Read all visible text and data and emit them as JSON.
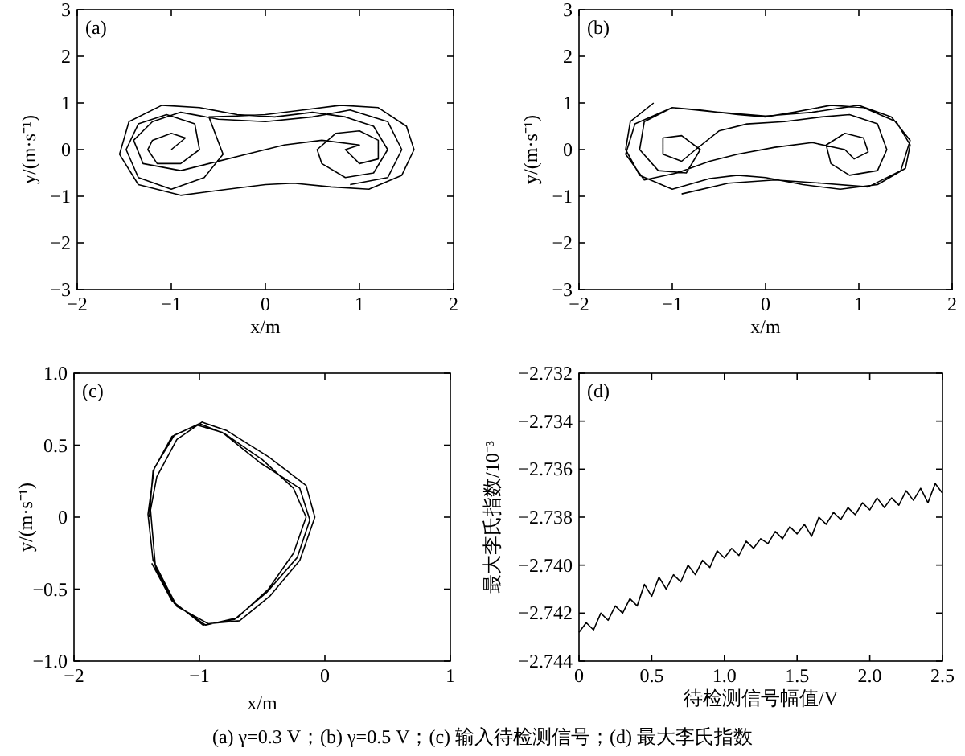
{
  "chart_data": [
    {
      "type": "line",
      "xlabel": "x/m",
      "ylabel": "y/(m·s⁻¹)",
      "annotations": [
        "(a)"
      ],
      "xlim": [
        -2,
        2
      ],
      "ylim": [
        -3,
        3
      ],
      "xticks": [
        -2,
        -1,
        0,
        1,
        2
      ],
      "yticks": [
        -3,
        -2,
        -1,
        0,
        1,
        2,
        3
      ],
      "series": [
        {
          "color": "#000000",
          "x": [
            -1,
            -0.85,
            -1,
            -1.2,
            -1.25,
            -1.15,
            -0.9,
            -0.7,
            -0.75,
            -1.05,
            -1.35,
            -1.48,
            -1.35,
            -1,
            -0.65,
            -0.45,
            -0.6,
            -0.3,
            0,
            0.4,
            0.8,
            1.2,
            1.5,
            1.58,
            1.45,
            1.1,
            0.7,
            0.3,
            0,
            -0.4,
            -0.9,
            -1.35,
            -1.55,
            -1.45,
            -1.1,
            -0.7,
            -0.3,
            0.1,
            0.5,
            0.85,
            1.15,
            1.3,
            1.15,
            0.85,
            0.6,
            0.55,
            0.75,
            1,
            1.2,
            1.2,
            1,
            0.85,
            1,
            0.6,
            0.2,
            -0.2,
            -0.6,
            -0.9,
            -1.3,
            -1.4,
            -1.2,
            -0.9,
            -0.5,
            0,
            0.5,
            0.9,
            1.3,
            1.45,
            1.3,
            0.9
          ],
          "values": [
            0,
            0.25,
            0.35,
            0.2,
            0,
            -0.3,
            -0.3,
            0,
            0.55,
            0.75,
            0.55,
            0,
            -0.6,
            -0.85,
            -0.6,
            -0.1,
            0.7,
            0.72,
            0.75,
            0.85,
            0.95,
            0.9,
            0.5,
            0,
            -0.55,
            -0.85,
            -0.8,
            -0.72,
            -0.75,
            -0.85,
            -0.98,
            -0.75,
            -0.1,
            0.6,
            0.95,
            0.9,
            0.75,
            0.7,
            0.8,
            0.7,
            0.5,
            0,
            -0.5,
            -0.6,
            -0.3,
            0,
            0.35,
            0.4,
            0.2,
            -0.2,
            -0.3,
            0,
            0.1,
            0.2,
            0.1,
            -0.1,
            -0.3,
            -0.45,
            -0.3,
            0.2,
            0.6,
            0.8,
            0.65,
            0.6,
            0.7,
            0.85,
            0.6,
            0,
            -0.6,
            -0.75
          ]
        }
      ]
    },
    {
      "type": "line",
      "xlabel": "x/m",
      "ylabel": "y/(m·s⁻¹)",
      "annotations": [
        "(b)"
      ],
      "xlim": [
        -2,
        2
      ],
      "ylim": [
        -3,
        3
      ],
      "xticks": [
        -2,
        -1,
        0,
        1,
        2
      ],
      "yticks": [
        -3,
        -2,
        -1,
        0,
        1,
        2,
        3
      ],
      "series": [
        {
          "color": "#000000",
          "x": [
            -1.2,
            -1.45,
            -1.5,
            -1.35,
            -1,
            -0.6,
            -0.3,
            0,
            0.4,
            0.8,
            1.2,
            1.5,
            1.55,
            1.4,
            1.05,
            0.7,
            0.3,
            0,
            -0.3,
            -0.7,
            -1,
            -1.3,
            -1.35,
            -1.15,
            -0.85,
            -0.7,
            -0.9,
            -1.1,
            -1.1,
            -0.9,
            -0.75,
            -0.5,
            -0.2,
            0.2,
            0.6,
            0.9,
            1.2,
            1.3,
            1.2,
            0.9,
            0.7,
            0.65,
            0.85,
            1.05,
            1.1,
            0.95,
            0.85,
            0.5,
            0.1,
            -0.3,
            -0.6,
            -0.95,
            -1.3,
            -1.5,
            -1.4,
            -1,
            -0.5,
            0,
            0.5,
            1,
            1.35,
            1.55,
            1.45,
            1.1,
            0.6,
            0.1,
            -0.4,
            -0.9
          ],
          "values": [
            1,
            0.6,
            0,
            -0.55,
            -0.85,
            -0.62,
            -0.55,
            -0.6,
            -0.75,
            -0.85,
            -0.75,
            -0.4,
            0.1,
            0.6,
            0.9,
            0.95,
            0.8,
            0.7,
            0.75,
            0.85,
            0.9,
            0.6,
            0,
            -0.45,
            -0.5,
            0,
            0.3,
            0.25,
            -0.1,
            -0.25,
            0,
            0.4,
            0.55,
            0.6,
            0.7,
            0.75,
            0.55,
            0,
            -0.45,
            -0.55,
            -0.3,
            0.1,
            0.35,
            0.25,
            -0.05,
            -0.2,
            0,
            0.15,
            0.05,
            -0.1,
            -0.25,
            -0.5,
            -0.65,
            -0.1,
            0.55,
            0.9,
            0.8,
            0.72,
            0.8,
            0.95,
            0.7,
            0.2,
            -0.45,
            -0.8,
            -0.72,
            -0.65,
            -0.72,
            -0.95
          ]
        }
      ]
    },
    {
      "type": "line",
      "xlabel": "x/m",
      "ylabel": "y/(m·s⁻¹)",
      "annotations": [
        "(c)"
      ],
      "xlim": [
        -2,
        1
      ],
      "ylim": [
        -1,
        1
      ],
      "xticks": [
        -2,
        -1,
        0,
        1
      ],
      "yticks": [
        {
          "value": -1,
          "label": "−1.0"
        },
        {
          "value": -0.5,
          "label": "−0.5"
        },
        0,
        {
          "value": 0.5,
          "label": "0.5"
        },
        {
          "value": 1,
          "label": "1.0"
        }
      ],
      "series": [
        {
          "color": "#000000",
          "x": [
            -1.4,
            -1.37,
            -1.22,
            -1.0,
            -0.8,
            -0.5,
            -0.25,
            -0.15,
            -0.25,
            -0.45,
            -0.7,
            -0.95,
            -1.2,
            -1.35,
            -1.39,
            -1.34,
            -1.18,
            -0.98,
            -0.78,
            -0.45,
            -0.15,
            -0.08,
            -0.2,
            -0.44,
            -0.68,
            -0.93,
            -1.18,
            -1.37,
            -1.41,
            -1.36,
            -1.2,
            -1.02,
            -0.82,
            -0.52,
            -0.2,
            -0.12,
            -0.22,
            -0.46,
            -0.72,
            -0.97,
            -1.22,
            -1.38
          ],
          "values": [
            0,
            0.32,
            0.56,
            0.65,
            0.58,
            0.4,
            0.2,
            0,
            -0.25,
            -0.5,
            -0.7,
            -0.75,
            -0.6,
            -0.35,
            0.05,
            0.28,
            0.54,
            0.66,
            0.6,
            0.42,
            0.22,
            0,
            -0.3,
            -0.55,
            -0.72,
            -0.74,
            -0.62,
            -0.3,
            0.02,
            0.34,
            0.57,
            0.64,
            0.59,
            0.38,
            0.2,
            -0.02,
            -0.28,
            -0.52,
            -0.71,
            -0.75,
            -0.58,
            -0.32
          ]
        }
      ]
    },
    {
      "type": "line",
      "xlabel": "待检测信号幅值/V",
      "ylabel": "最大李氏指数/10⁻³",
      "annotations": [
        "(d)",
        "(a) γ=0.3 V；(b) γ=0.5 V；(c) 输入待检测信号；(d) 最大李氏指数"
      ],
      "xlim": [
        0,
        2.5
      ],
      "ylim": [
        -2.744,
        -2.732
      ],
      "xticks": [
        0,
        {
          "value": 0.5,
          "label": "0.5"
        },
        {
          "value": 1,
          "label": "1.0"
        },
        {
          "value": 1.5,
          "label": "1.5"
        },
        {
          "value": 2,
          "label": "2.0"
        },
        {
          "value": 2.5,
          "label": "2.5"
        }
      ],
      "yticks": [
        {
          "value": -2.744,
          "label": "−2.744"
        },
        {
          "value": -2.742,
          "label": "−2.742"
        },
        {
          "value": -2.74,
          "label": "−2.740"
        },
        {
          "value": -2.738,
          "label": "−2.738"
        },
        {
          "value": -2.736,
          "label": "−2.736"
        },
        {
          "value": -2.734,
          "label": "−2.734"
        },
        {
          "value": -2.732,
          "label": "−2.732"
        }
      ],
      "series": [
        {
          "color": "#000000",
          "x": [
            0,
            0.05,
            0.1,
            0.15,
            0.2,
            0.25,
            0.3,
            0.35,
            0.4,
            0.45,
            0.5,
            0.55,
            0.6,
            0.65,
            0.7,
            0.75,
            0.8,
            0.85,
            0.9,
            0.95,
            1,
            1.05,
            1.1,
            1.15,
            1.2,
            1.25,
            1.3,
            1.35,
            1.4,
            1.45,
            1.5,
            1.55,
            1.6,
            1.65,
            1.7,
            1.75,
            1.8,
            1.85,
            1.9,
            1.95,
            2,
            2.05,
            2.1,
            2.15,
            2.2,
            2.25,
            2.3,
            2.35,
            2.4,
            2.45,
            2.5
          ],
          "values": [
            -2.7428,
            -2.7424,
            -2.7427,
            -2.742,
            -2.7423,
            -2.7417,
            -2.742,
            -2.7414,
            -2.7417,
            -2.7408,
            -2.7413,
            -2.7405,
            -2.741,
            -2.7404,
            -2.7407,
            -2.74,
            -2.7404,
            -2.7398,
            -2.7401,
            -2.7394,
            -2.7397,
            -2.7393,
            -2.7396,
            -2.739,
            -2.7393,
            -2.7389,
            -2.7391,
            -2.7386,
            -2.7389,
            -2.7384,
            -2.7387,
            -2.7383,
            -2.7388,
            -2.738,
            -2.7383,
            -2.7378,
            -2.7381,
            -2.7376,
            -2.7379,
            -2.7374,
            -2.7377,
            -2.7372,
            -2.7376,
            -2.7372,
            -2.7375,
            -2.7369,
            -2.7373,
            -2.7368,
            -2.7374,
            -2.7366,
            -2.737
          ]
        }
      ]
    }
  ]
}
